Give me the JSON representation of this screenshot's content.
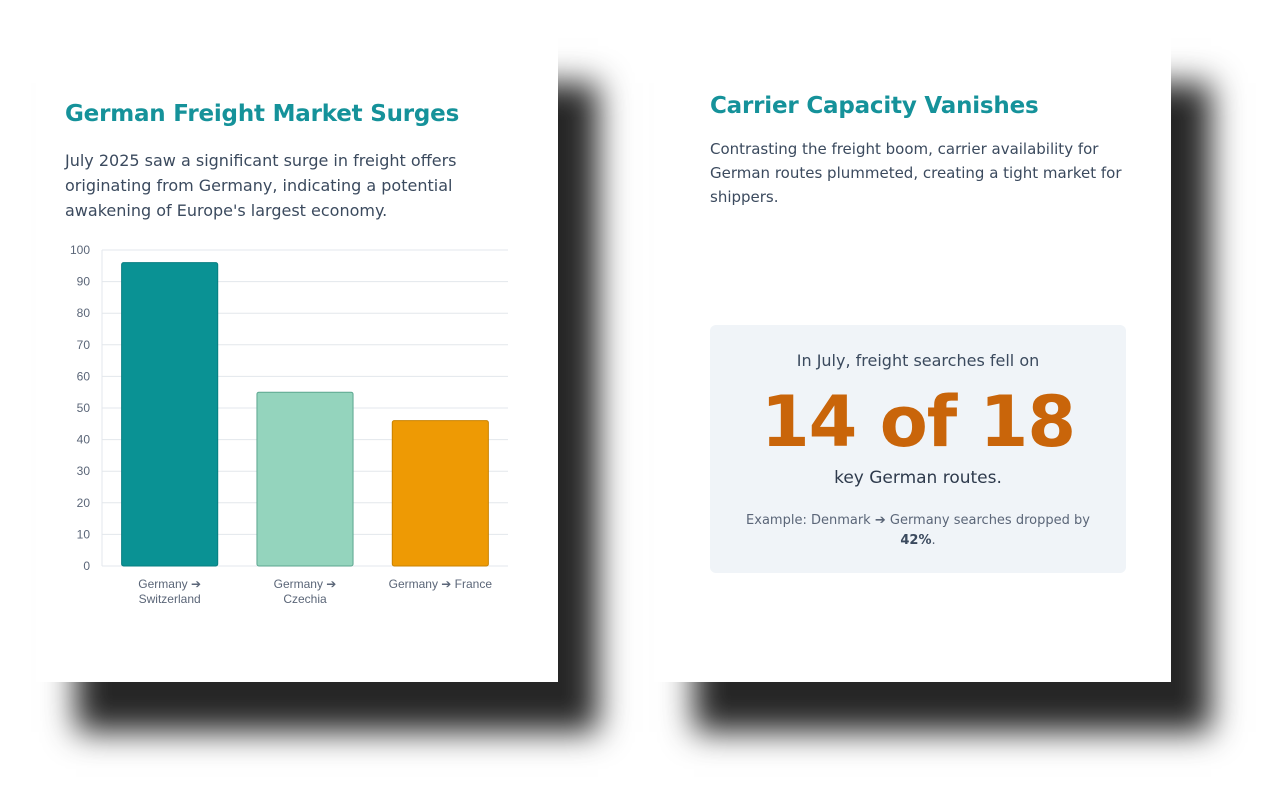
{
  "left_card": {
    "title": "German Freight Market Surges",
    "description": "July 2025 saw a significant surge in freight offers originating from Germany, indicating a potential awakening of Europe's largest economy."
  },
  "right_card": {
    "title": "Carrier Capacity Vanishes",
    "description": "Contrasting the freight boom, carrier availability for German routes plummeted, creating a tight market for shippers.",
    "stat": {
      "intro": "In July, freight searches fell on",
      "number": "14 of 18",
      "outro": "key German routes.",
      "note_prefix": "Example: Denmark ➔ Germany searches dropped by",
      "note_value": "42%",
      "note_suffix": "."
    }
  },
  "chart_data": {
    "type": "bar",
    "categories": [
      [
        "Germany ➔",
        "Switzerland"
      ],
      [
        "Germany ➔",
        "Czechia"
      ],
      [
        "Germany ➔ France"
      ]
    ],
    "values": [
      96,
      55,
      46
    ],
    "colors": [
      "#0a9294",
      "#94d4bd",
      "#ee9a04"
    ],
    "border_colors": [
      "#067d80",
      "#5ba68f",
      "#c98200"
    ],
    "ylim": [
      0,
      100
    ],
    "yticks": [
      0,
      10,
      20,
      30,
      40,
      50,
      60,
      70,
      80,
      90,
      100
    ],
    "grid": true,
    "legend": "none",
    "xlabel": "",
    "ylabel": ""
  }
}
